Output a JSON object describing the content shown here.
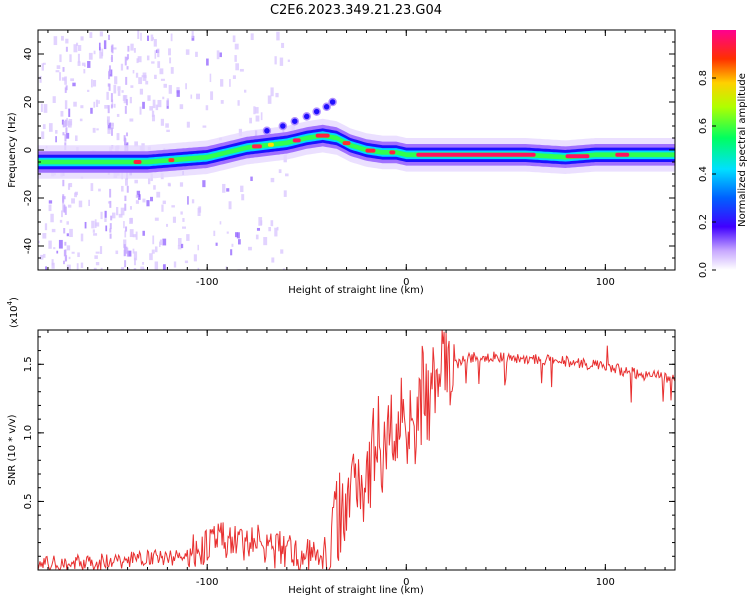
{
  "title": "C2E6.2023.349.21.23.G04",
  "chart_data": [
    {
      "type": "heatmap",
      "xlabel": "Height of straight line (km)",
      "ylabel": "Frequency (Hz)",
      "xlim": [
        -185,
        135
      ],
      "ylim": [
        -50,
        50
      ],
      "x_ticks": [
        -100,
        0,
        100
      ],
      "y_ticks": [
        40,
        20,
        0,
        -20,
        -40
      ],
      "colorbar": {
        "label": "Normalized spectral amplitude",
        "range": [
          0,
          1
        ],
        "ticks": [
          "0.0",
          "0.2",
          "0.4",
          "0.6",
          "0.8"
        ],
        "colors": [
          "#ffffff",
          "#a070ff",
          "#0000ff",
          "#00e0ff",
          "#00ff40",
          "#ffff00",
          "#ff0000",
          "#ff00a0"
        ]
      },
      "trace": {
        "x": [
          -185,
          -165,
          -145,
          -130,
          -115,
          -100,
          -90,
          -80,
          -70,
          -60,
          -50,
          -42,
          -35,
          -28,
          -20,
          -12,
          -5,
          0,
          10,
          30,
          60,
          80,
          95,
          110,
          135
        ],
        "y": [
          -5,
          -5,
          -5,
          -5,
          -4,
          -3,
          -1,
          1,
          2,
          3,
          5,
          6,
          5,
          2,
          0,
          -1,
          -1,
          -2,
          -2,
          -2,
          -2,
          -3,
          -2,
          -2,
          -2
        ]
      },
      "branch": {
        "x": [
          -70,
          -62,
          -56,
          -50,
          -45,
          -40,
          -37
        ],
        "y": [
          8,
          10,
          12,
          14,
          16,
          18,
          20
        ]
      }
    },
    {
      "type": "line",
      "xlabel": "Height of straight line (km)",
      "ylabel": "SNR (10 * v/v)",
      "y_multiplier": "(x10",
      "y_multiplier_exp": "4",
      "xlim": [
        -185,
        135
      ],
      "ylim": [
        0,
        1.75
      ],
      "x_ticks": [
        -100,
        0,
        100
      ],
      "y_ticks": [
        "0.5",
        "1.0",
        "1.5"
      ],
      "y_tick_values": [
        0.5,
        1.0,
        1.5
      ],
      "color": "#e83030",
      "series": [
        {
          "x": [
            -185,
            -170,
            -155,
            -140,
            -130,
            -120,
            -110,
            -100,
            -95,
            -90,
            -85,
            -80,
            -75,
            -70,
            -65,
            -60,
            -55,
            -50,
            -45,
            -40,
            -38,
            -35,
            -32,
            -30,
            -28,
            -25,
            -22,
            -20,
            -18,
            -15,
            -12,
            -10,
            -8,
            -5,
            -2,
            0,
            3,
            5,
            8,
            10,
            12,
            15,
            20,
            25,
            30,
            40,
            50,
            60,
            70,
            80,
            90,
            100,
            110,
            120,
            135
          ],
          "y": [
            0.04,
            0.05,
            0.06,
            0.07,
            0.1,
            0.08,
            0.12,
            0.18,
            0.2,
            0.22,
            0.2,
            0.18,
            0.22,
            0.17,
            0.14,
            0.15,
            0.12,
            0.1,
            0.12,
            0.14,
            0.1,
            0.35,
            0.5,
            0.45,
            0.6,
            0.7,
            0.65,
            0.8,
            0.75,
            1.0,
            0.9,
            0.85,
            1.05,
            1.0,
            1.15,
            1.1,
            1.2,
            1.05,
            1.3,
            1.2,
            1.3,
            1.38,
            1.45,
            1.5,
            1.54,
            1.56,
            1.55,
            1.54,
            1.53,
            1.52,
            1.5,
            1.48,
            1.45,
            1.42,
            1.4
          ]
        }
      ]
    }
  ]
}
